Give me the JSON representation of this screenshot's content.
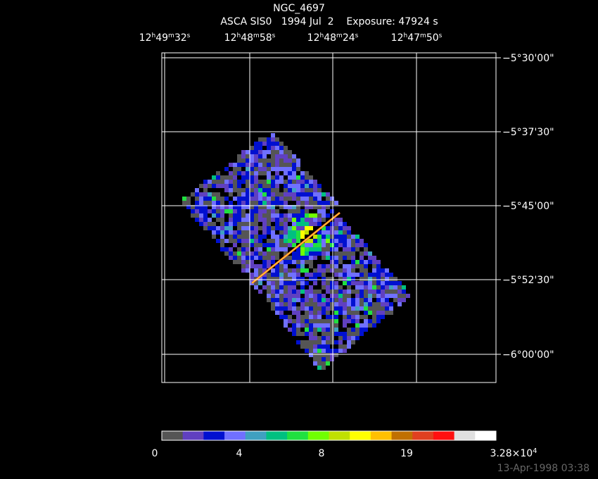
{
  "header": {
    "title": "NGC_4697",
    "subtitle": "ASCA SIS0   1994 Jul  2    Exposure: 47924 s"
  },
  "ra_labels": [
    [
      "12",
      "h",
      "49",
      "m",
      "32",
      "s"
    ],
    [
      "12",
      "h",
      "48",
      "m",
      "58",
      "s"
    ],
    [
      "12",
      "h",
      "48",
      "m",
      "24",
      "s"
    ],
    [
      "12",
      "h",
      "47",
      "m",
      "50",
      "s"
    ]
  ],
  "dec_labels": [
    "−5°30'00\"",
    "−5°37'30\"",
    "−5°45'00\"",
    "−5°52'30\"",
    "−6°00'00\""
  ],
  "colorbar": {
    "colors": [
      "#555555",
      "#6040c0",
      "#0010d0",
      "#7070ff",
      "#40a0c0",
      "#00c080",
      "#20e040",
      "#70ff00",
      "#c0e000",
      "#ffff00",
      "#ffc000",
      "#c07000",
      "#e04020",
      "#ff1010",
      "#e0e0e0",
      "#ffffff"
    ],
    "labels": [
      [
        "0"
      ],
      [
        "4"
      ],
      [
        "8"
      ],
      [
        "19"
      ],
      [
        "3.28×10",
        "4"
      ]
    ]
  },
  "timestamp": "13-Apr-1998 03:38"
}
